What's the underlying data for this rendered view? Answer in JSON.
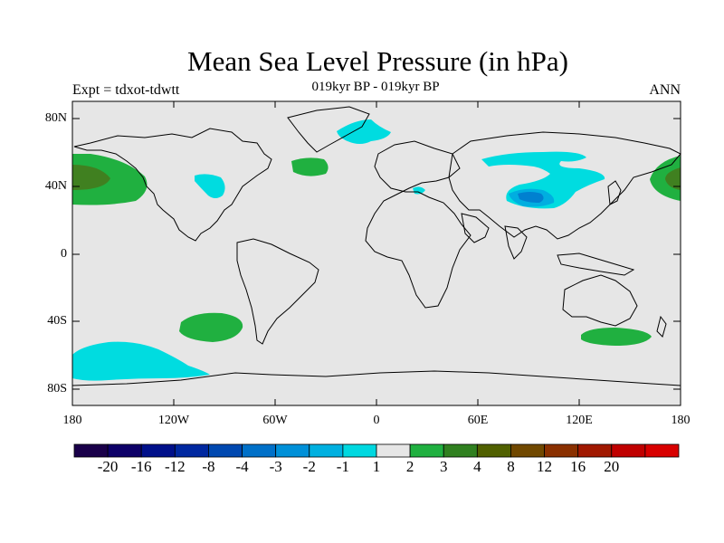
{
  "title": "Mean Sea Level Pressure (in hPa)",
  "subtitle_left": "Expt = tdxot-tdwtt",
  "subtitle_center": "019kyr BP - 019kyr BP",
  "subtitle_right": "ANN",
  "lat_ticks": [
    "80N",
    "40N",
    "0",
    "40S",
    "80S"
  ],
  "lon_ticks": [
    "180",
    "120W",
    "60W",
    "0",
    "60E",
    "120E",
    "180"
  ],
  "colors": {
    "land_ocean_bg": "#e6e6e6",
    "coast": "#000000",
    "cyan": "#00dce0",
    "light_blue": "#00aee0",
    "blue": "#0080d0",
    "green": "#20b040",
    "olive_green": "#408020"
  },
  "colorbar": {
    "colors": [
      "#1a004a",
      "#0d0068",
      "#00108a",
      "#0028a0",
      "#0048b0",
      "#0070c8",
      "#0090d8",
      "#00b0e0",
      "#00d8e0",
      "#e6e6e6",
      "#20b040",
      "#308020",
      "#506000",
      "#704800",
      "#8a3000",
      "#a01800",
      "#c00000",
      "#d80000"
    ],
    "labels": [
      "-20",
      "-16",
      "-12",
      "-8",
      "-4",
      "-3",
      "-2",
      "-1",
      "1",
      "2",
      "3",
      "4",
      "8",
      "12",
      "16",
      "20"
    ]
  }
}
